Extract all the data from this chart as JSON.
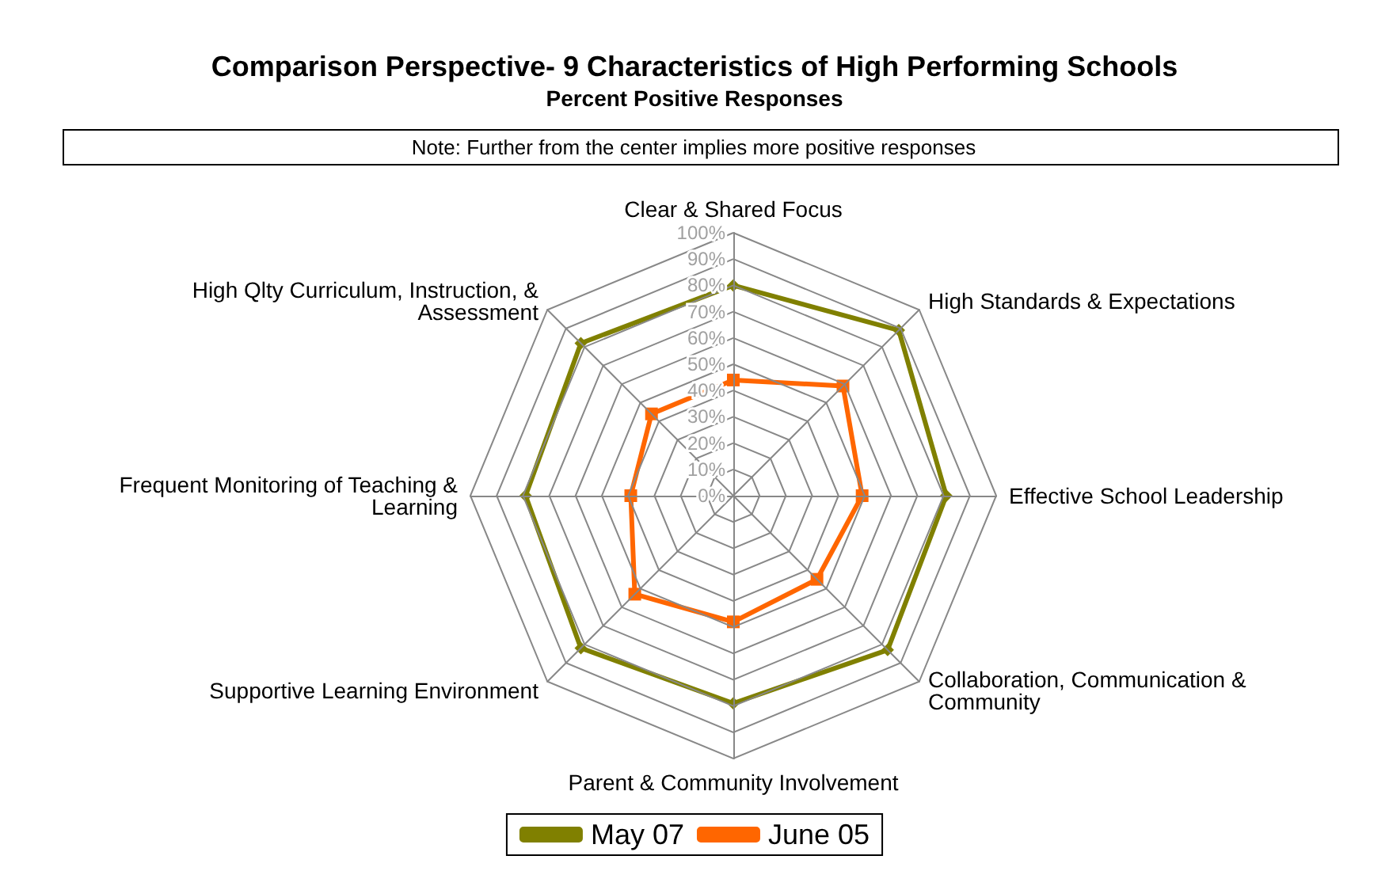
{
  "chart_data": {
    "type": "radar",
    "title": "Comparison Perspective- 9 Characteristics of High Performing Schools",
    "subtitle": "Percent Positive Responses",
    "annotations": [
      "Note: Further from the center implies more positive responses"
    ],
    "categories": [
      "Clear & Shared Focus",
      "High Standards & Expectations",
      "Effective School Leadership",
      "Collaboration, Communication & Community",
      "Parent & Community Involvement",
      "Supportive Learning Environment",
      "Frequent Monitoring of Teaching & Learning",
      "High Qlty Curriculum, Instruction, & Assessment"
    ],
    "series": [
      {
        "name": "May 07",
        "color": "#808000",
        "marker": "diamond",
        "values": [
          80,
          89,
          81,
          83,
          79,
          82,
          79,
          82
        ]
      },
      {
        "name": "June 05",
        "color": "#ff6600",
        "marker": "square",
        "values": [
          44,
          59,
          49,
          45,
          48,
          53,
          39,
          44
        ]
      }
    ],
    "ylim": [
      0,
      100
    ],
    "yticks": [
      {
        "value": 0,
        "label": "0%"
      },
      {
        "value": 10,
        "label": "10%"
      },
      {
        "value": 20,
        "label": "20%"
      },
      {
        "value": 30,
        "label": "30%"
      },
      {
        "value": 40,
        "label": "40%"
      },
      {
        "value": 50,
        "label": "50%"
      },
      {
        "value": 60,
        "label": "60%"
      },
      {
        "value": 70,
        "label": "70%"
      },
      {
        "value": 80,
        "label": "80%"
      },
      {
        "value": 90,
        "label": "90%"
      },
      {
        "value": 100,
        "label": "100%"
      }
    ],
    "legend": "bottom",
    "grid": true
  }
}
